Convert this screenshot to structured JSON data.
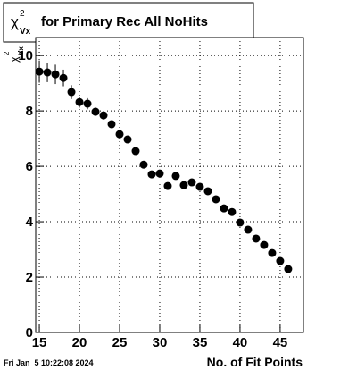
{
  "chart_data": {
    "type": "scatter",
    "title_symbol": "χ",
    "title_sup": "2",
    "title_sub": "Vx",
    "title": "for Primary Rec All NoHits",
    "ylabel_symbol": "χ",
    "ylabel_sup": "2",
    "ylabel_sub": "Vx",
    "xlabel": "No. of Fit Points",
    "timestamp": "Fri Jan  5 10:22:08 2024",
    "x": [
      15,
      16,
      17,
      18,
      19,
      20,
      21,
      22,
      23,
      24,
      25,
      26,
      27,
      28,
      29,
      30,
      31,
      32,
      33,
      34,
      35,
      36,
      37,
      38,
      39,
      40,
      41,
      42,
      43,
      44,
      45,
      46
    ],
    "values": [
      9.42,
      9.39,
      9.32,
      9.19,
      8.68,
      8.32,
      8.26,
      7.97,
      7.84,
      7.52,
      7.16,
      6.97,
      6.55,
      6.06,
      5.71,
      5.74,
      5.29,
      5.65,
      5.32,
      5.42,
      5.26,
      5.1,
      4.81,
      4.48,
      4.35,
      3.97,
      3.71,
      3.39,
      3.16,
      2.87,
      2.58,
      2.29
    ],
    "errors": [
      0.4,
      0.35,
      0.35,
      0.3,
      0.25,
      0.2,
      0.2,
      0.15,
      0.15,
      0.12,
      0.12,
      0.1,
      0.1,
      0.1,
      0.1,
      0.1,
      0.1,
      0.1,
      0.1,
      0.1,
      0.1,
      0.1,
      0.1,
      0.1,
      0.1,
      0.1,
      0.1,
      0.1,
      0.1,
      0.1,
      0.1,
      0.1
    ],
    "color": "#000000",
    "xlim": [
      14.55,
      47.9
    ],
    "xticks": [
      15,
      20,
      25,
      30,
      35,
      40,
      45
    ],
    "ylim": [
      0,
      10.65
    ],
    "yticks": [
      0,
      2,
      4,
      6,
      8,
      10
    ],
    "grid": true
  }
}
